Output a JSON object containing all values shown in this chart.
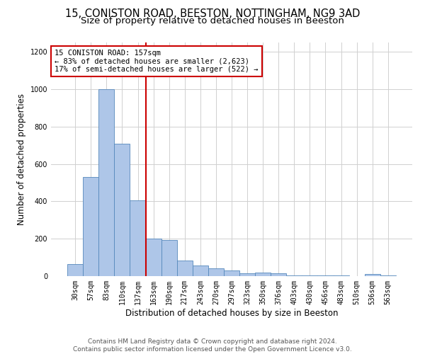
{
  "title_line1": "15, CONISTON ROAD, BEESTON, NOTTINGHAM, NG9 3AD",
  "title_line2": "Size of property relative to detached houses in Beeston",
  "xlabel": "Distribution of detached houses by size in Beeston",
  "ylabel": "Number of detached properties",
  "footer_line1": "Contains HM Land Registry data © Crown copyright and database right 2024.",
  "footer_line2": "Contains public sector information licensed under the Open Government Licence v3.0.",
  "bar_labels": [
    "30sqm",
    "57sqm",
    "83sqm",
    "110sqm",
    "137sqm",
    "163sqm",
    "190sqm",
    "217sqm",
    "243sqm",
    "270sqm",
    "297sqm",
    "323sqm",
    "350sqm",
    "376sqm",
    "403sqm",
    "430sqm",
    "456sqm",
    "483sqm",
    "510sqm",
    "536sqm",
    "563sqm"
  ],
  "bar_values": [
    65,
    530,
    1000,
    710,
    405,
    200,
    195,
    85,
    55,
    40,
    30,
    15,
    20,
    15,
    5,
    5,
    5,
    5,
    0,
    10,
    5
  ],
  "bar_color": "#aec6e8",
  "bar_edge_color": "#5588bb",
  "vline_x_idx": 4.5,
  "vline_color": "#cc0000",
  "annotation_text": "15 CONISTON ROAD: 157sqm\n← 83% of detached houses are smaller (2,623)\n17% of semi-detached houses are larger (522) →",
  "annotation_box_color": "#ffffff",
  "annotation_box_edge": "#cc0000",
  "ylim": [
    0,
    1250
  ],
  "yticks": [
    0,
    200,
    400,
    600,
    800,
    1000,
    1200
  ],
  "background_color": "#ffffff",
  "grid_color": "#d0d0d0",
  "title1_fontsize": 10.5,
  "title2_fontsize": 9.5,
  "axis_label_fontsize": 8.5,
  "tick_fontsize": 7,
  "annotation_fontsize": 7.5,
  "footer_fontsize": 6.5
}
